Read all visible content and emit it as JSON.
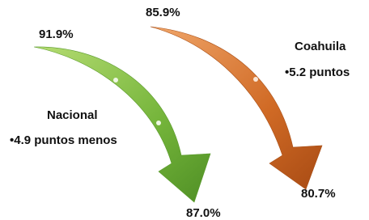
{
  "arrows": [
    {
      "name": "Nacional",
      "start": "91.9%",
      "end": "87.0%",
      "note": "•4.9 puntos menos"
    },
    {
      "name": "Coahuila",
      "start": "85.9%",
      "end": "80.7%",
      "note": "•5.2 puntos"
    }
  ]
}
